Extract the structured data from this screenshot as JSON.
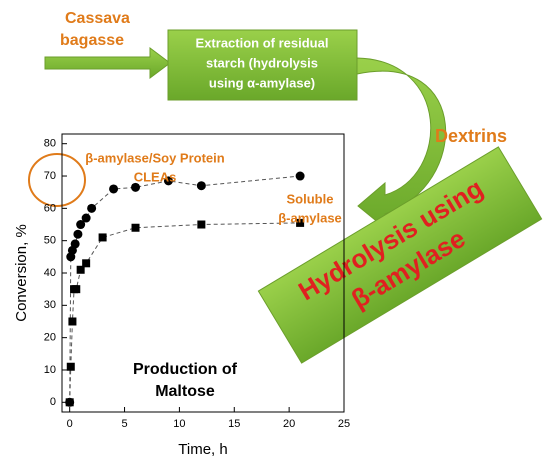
{
  "diagram": {
    "source": [
      "Cassava",
      "bagasse"
    ],
    "step1": [
      "Extraction of residual",
      "starch (hydrolysis",
      "using α-amylase)"
    ],
    "intermediate": "Dextrins",
    "step2": [
      "Hydrolysis using",
      "β-amylase"
    ]
  },
  "chart_data": {
    "type": "scatter",
    "xlabel": "Time, h",
    "ylabel": "Conversion, %",
    "xlim": [
      -0.7,
      25
    ],
    "ylim": [
      -3,
      83
    ],
    "xticks": [
      0,
      5,
      10,
      15,
      20,
      25
    ],
    "yticks": [
      0,
      10,
      20,
      30,
      40,
      50,
      60,
      70,
      80
    ],
    "annotations": [
      [
        "β-amylase/Soy Protein",
        "CLEAs"
      ],
      [
        "Soluble",
        "β-amylase"
      ],
      [
        "Production of",
        "Maltose"
      ]
    ],
    "series": [
      {
        "name": "β-amylase/Soy Protein CLEAs",
        "marker": "circle",
        "color": "#000000",
        "x": [
          0,
          0.1,
          0.25,
          0.5,
          0.75,
          1,
          1.5,
          2,
          4,
          6,
          9,
          12,
          21
        ],
        "values": [
          0,
          45,
          47,
          49,
          52,
          55,
          57,
          60,
          66,
          66.5,
          68.5,
          67,
          70
        ]
      },
      {
        "name": "Soluble β-amylase",
        "marker": "square",
        "color": "#000000",
        "x": [
          0,
          0.1,
          0.25,
          0.4,
          0.6,
          1,
          1.5,
          3,
          6,
          12,
          21
        ],
        "values": [
          0,
          11,
          25,
          35,
          35,
          41,
          43,
          51,
          54,
          55,
          55.5
        ]
      }
    ]
  }
}
